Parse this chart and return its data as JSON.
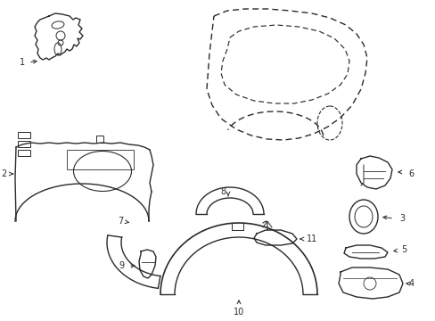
{
  "bg_color": "#ffffff",
  "line_color": "#2a2a2a",
  "figsize": [
    4.89,
    3.6
  ],
  "dpi": 100,
  "lw": 1.0
}
